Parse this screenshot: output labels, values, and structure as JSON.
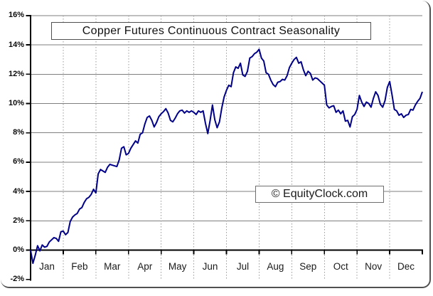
{
  "chart_data": {
    "type": "line",
    "title": "Copper Futures Continuous Contract Seasonality",
    "watermark": "© EquityClock.com",
    "categories": [
      "Jan",
      "Feb",
      "Mar",
      "Apr",
      "May",
      "Jun",
      "Jul",
      "Aug",
      "Sep",
      "Oct",
      "Nov",
      "Dec"
    ],
    "y_tick_labels": [
      "16%",
      "14%",
      "12%",
      "10%",
      "8%",
      "6%",
      "4%",
      "2%",
      "0%",
      "-2%"
    ],
    "ylim": [
      -2,
      16
    ],
    "y_tick_step": 2,
    "ylabel_unit": "%",
    "x_axis_at_value": 0,
    "legend": "none",
    "grid": {
      "h_style": "solid",
      "v_style": "dotted",
      "h_color": "#7f7f7f",
      "v_color": "#999999"
    },
    "line_color": "#000089",
    "axis_color": "#000000",
    "points_per_month": 14,
    "values": [
      0.0,
      -0.9,
      -0.35,
      0.3,
      -0.05,
      0.35,
      0.2,
      0.25,
      0.55,
      0.7,
      0.85,
      0.8,
      0.6,
      1.25,
      1.3,
      1.05,
      1.2,
      1.95,
      2.25,
      2.4,
      2.5,
      2.8,
      2.9,
      3.25,
      3.5,
      3.6,
      3.8,
      4.15,
      3.9,
      5.2,
      5.5,
      5.4,
      5.3,
      5.65,
      5.85,
      5.8,
      5.75,
      5.7,
      6.15,
      6.95,
      7.05,
      6.5,
      6.6,
      6.95,
      7.2,
      7.45,
      7.3,
      7.9,
      8.0,
      8.6,
      9.05,
      9.15,
      8.85,
      8.4,
      8.7,
      9.1,
      9.3,
      9.45,
      9.65,
      9.35,
      8.85,
      8.75,
      9.0,
      9.3,
      9.5,
      9.55,
      9.35,
      9.5,
      9.4,
      9.5,
      9.4,
      9.25,
      9.5,
      9.4,
      9.5,
      8.65,
      7.95,
      8.85,
      9.9,
      8.9,
      8.35,
      8.75,
      9.7,
      10.45,
      10.9,
      11.25,
      11.15,
      12.1,
      12.5,
      12.4,
      12.75,
      11.95,
      11.85,
      12.2,
      13.1,
      13.2,
      13.4,
      13.5,
      13.7,
      13.1,
      12.9,
      12.1,
      12.0,
      11.6,
      11.3,
      11.15,
      11.45,
      11.5,
      11.65,
      11.6,
      11.9,
      12.45,
      12.75,
      13.0,
      13.15,
      12.75,
      12.85,
      12.3,
      11.9,
      12.2,
      12.05,
      11.6,
      11.75,
      11.7,
      11.55,
      11.4,
      11.25,
      9.9,
      9.7,
      9.8,
      9.85,
      9.4,
      9.55,
      9.3,
      9.5,
      8.8,
      8.85,
      8.4,
      9.1,
      9.25,
      9.6,
      10.55,
      10.1,
      9.8,
      10.1,
      10.0,
      9.75,
      10.35,
      10.8,
      10.55,
      9.95,
      9.75,
      10.2,
      11.1,
      11.5,
      10.6,
      9.6,
      9.5,
      9.2,
      9.3,
      9.05,
      9.2,
      9.25,
      9.6,
      9.55,
      9.9,
      10.15,
      10.35,
      10.8
    ]
  }
}
